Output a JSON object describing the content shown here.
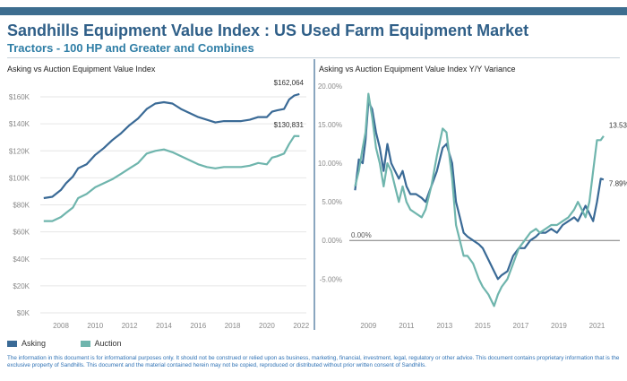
{
  "colors": {
    "header_bar": "#3d6d8f",
    "title": "#2f5f88",
    "subtitle": "#2f7ea6",
    "asking": "#3a6a96",
    "auction": "#6fb5ad",
    "axis_text": "#8a8a8a",
    "grid": "#e6e6e6",
    "zero_line": "#7a7a7a",
    "footer_text": "#2f72b5"
  },
  "header": {
    "title": "Sandhills Equipment Value Index : US Used Farm Equipment Market",
    "subtitle": "Tractors - 100 HP and Greater and Combines"
  },
  "legend": {
    "items": [
      {
        "label": "Asking",
        "color": "#3a6a96"
      },
      {
        "label": "Auction",
        "color": "#6fb5ad"
      }
    ]
  },
  "footer": {
    "disclaimer": "The information in this document is for informational purposes only.  It should not be construed or relied upon as business, marketing, financial, investment, legal, regulatory or other advice. This document contains proprietary information that is the exclusive property of Sandhills. This document and the material contained herein may not be copied, reproduced or distributed without prior written consent of Sandhills."
  },
  "chart_data": [
    {
      "type": "line",
      "title": "Asking vs Auction Equipment Value Index",
      "xlabel": "",
      "ylabel": "",
      "xlim": [
        2006.8,
        2022.3
      ],
      "ylim": [
        0,
        160000
      ],
      "x_ticks": [
        2008,
        2010,
        2012,
        2014,
        2016,
        2018,
        2020,
        2022
      ],
      "y_ticks": [
        0,
        20000,
        40000,
        60000,
        80000,
        100000,
        120000,
        140000,
        160000
      ],
      "y_tick_labels": [
        "$0K",
        "$20K",
        "$40K",
        "$60K",
        "$80K",
        "$100K",
        "$120K",
        "$140K",
        "$160K"
      ],
      "grid": "horizontal",
      "series": [
        {
          "name": "Asking",
          "x": [
            2007.0,
            2007.5,
            2008.0,
            2008.3,
            2008.7,
            2009.0,
            2009.5,
            2010.0,
            2010.5,
            2011.0,
            2011.5,
            2012.0,
            2012.5,
            2013.0,
            2013.5,
            2014.0,
            2014.5,
            2015.0,
            2015.5,
            2016.0,
            2016.5,
            2017.0,
            2017.5,
            2018.0,
            2018.5,
            2019.0,
            2019.5,
            2020.0,
            2020.3,
            2020.6,
            2021.0,
            2021.3,
            2021.6,
            2021.9
          ],
          "values": [
            85000,
            86000,
            91000,
            96000,
            101000,
            107000,
            110000,
            117000,
            122000,
            128000,
            133000,
            139000,
            144000,
            151000,
            155000,
            156000,
            155000,
            151000,
            148000,
            145000,
            143000,
            141000,
            142000,
            142000,
            142000,
            143000,
            145000,
            145000,
            149000,
            150000,
            151000,
            158000,
            161000,
            162064
          ],
          "end_label": "$162,064"
        },
        {
          "name": "Auction",
          "x": [
            2007.0,
            2007.5,
            2008.0,
            2008.3,
            2008.7,
            2009.0,
            2009.5,
            2010.0,
            2010.5,
            2011.0,
            2011.5,
            2012.0,
            2012.5,
            2013.0,
            2013.5,
            2014.0,
            2014.5,
            2015.0,
            2015.5,
            2016.0,
            2016.5,
            2017.0,
            2017.5,
            2018.0,
            2018.5,
            2019.0,
            2019.5,
            2020.0,
            2020.3,
            2020.6,
            2021.0,
            2021.3,
            2021.6,
            2021.9
          ],
          "values": [
            68000,
            68000,
            71000,
            74000,
            78000,
            85000,
            88000,
            93000,
            96000,
            99000,
            103000,
            107000,
            111000,
            118000,
            120000,
            121000,
            119000,
            116000,
            113000,
            110000,
            108000,
            107000,
            108000,
            108000,
            108000,
            109000,
            111000,
            110000,
            115000,
            116000,
            118000,
            125000,
            131000,
            130831
          ],
          "end_label": "$130,831"
        }
      ]
    },
    {
      "type": "line",
      "title": "Asking vs Auction Equipment Value Index Y/Y Variance",
      "xlabel": "",
      "ylabel": "",
      "xlim": [
        2008.0,
        2022.2
      ],
      "ylim": [
        -9.5,
        20
      ],
      "x_ticks": [
        2009,
        2011,
        2013,
        2015,
        2017,
        2019,
        2021
      ],
      "y_ticks": [
        -5,
        0,
        5,
        10,
        15,
        20
      ],
      "y_tick_labels": [
        "-5.00%",
        "0.00%",
        "5.00%",
        "10.00%",
        "15.00%",
        "20.00%"
      ],
      "grid": "none",
      "reference_line": {
        "value": 0,
        "label": "0.00%"
      },
      "series": [
        {
          "name": "Asking",
          "x": [
            2008.3,
            2008.5,
            2008.7,
            2008.85,
            2009.0,
            2009.2,
            2009.4,
            2009.6,
            2009.8,
            2010.0,
            2010.2,
            2010.4,
            2010.6,
            2010.8,
            2011.0,
            2011.2,
            2011.5,
            2011.8,
            2012.0,
            2012.3,
            2012.6,
            2012.9,
            2013.1,
            2013.4,
            2013.6,
            2013.8,
            2014.0,
            2014.2,
            2014.5,
            2014.8,
            2015.0,
            2015.3,
            2015.6,
            2015.8,
            2016.0,
            2016.3,
            2016.6,
            2016.9,
            2017.2,
            2017.5,
            2017.8,
            2018.0,
            2018.3,
            2018.6,
            2018.9,
            2019.2,
            2019.5,
            2019.8,
            2020.0,
            2020.2,
            2020.4,
            2020.6,
            2020.8,
            2021.0,
            2021.2,
            2021.35
          ],
          "values": [
            6.5,
            10.5,
            10.0,
            13.0,
            18.0,
            17.0,
            14.0,
            12.0,
            9.0,
            12.5,
            10.0,
            9.0,
            8.0,
            9.0,
            7.0,
            6.0,
            6.0,
            5.5,
            5.0,
            7.0,
            9.0,
            12.0,
            12.5,
            10.0,
            5.0,
            3.0,
            1.0,
            0.5,
            0.0,
            -0.5,
            -1.0,
            -2.5,
            -4.0,
            -5.0,
            -4.5,
            -4.0,
            -2.0,
            -1.0,
            -1.0,
            0.0,
            0.5,
            1.0,
            1.0,
            1.5,
            1.0,
            2.0,
            2.5,
            3.0,
            2.5,
            3.5,
            4.5,
            3.5,
            2.5,
            5.0,
            8.0,
            7.89
          ],
          "end_label": "7.89%"
        },
        {
          "name": "Auction",
          "x": [
            2008.3,
            2008.5,
            2008.7,
            2008.85,
            2009.0,
            2009.2,
            2009.4,
            2009.6,
            2009.8,
            2010.0,
            2010.2,
            2010.4,
            2010.6,
            2010.8,
            2011.0,
            2011.2,
            2011.5,
            2011.8,
            2012.0,
            2012.3,
            2012.6,
            2012.9,
            2013.1,
            2013.4,
            2013.6,
            2013.8,
            2014.0,
            2014.2,
            2014.5,
            2014.8,
            2015.0,
            2015.3,
            2015.6,
            2015.8,
            2016.0,
            2016.3,
            2016.6,
            2016.9,
            2017.2,
            2017.5,
            2017.8,
            2018.0,
            2018.3,
            2018.6,
            2018.9,
            2019.2,
            2019.5,
            2019.8,
            2020.0,
            2020.2,
            2020.4,
            2020.6,
            2020.8,
            2021.0,
            2021.2,
            2021.35
          ],
          "values": [
            7.0,
            9.0,
            12.0,
            14.0,
            19.0,
            16.0,
            12.0,
            10.0,
            7.0,
            10.0,
            9.0,
            7.0,
            5.0,
            7.0,
            5.0,
            4.0,
            3.5,
            3.0,
            4.0,
            7.0,
            11.0,
            14.5,
            14.0,
            8.0,
            2.0,
            0.0,
            -2.0,
            -2.0,
            -3.0,
            -5.0,
            -6.0,
            -7.0,
            -8.5,
            -7.0,
            -6.0,
            -5.0,
            -3.0,
            -1.0,
            0.0,
            1.0,
            1.5,
            1.0,
            1.5,
            2.0,
            2.0,
            2.5,
            3.0,
            4.0,
            5.0,
            4.0,
            3.0,
            5.0,
            9.0,
            13.0,
            13.0,
            13.53
          ],
          "end_label": "13.53%"
        }
      ]
    }
  ]
}
